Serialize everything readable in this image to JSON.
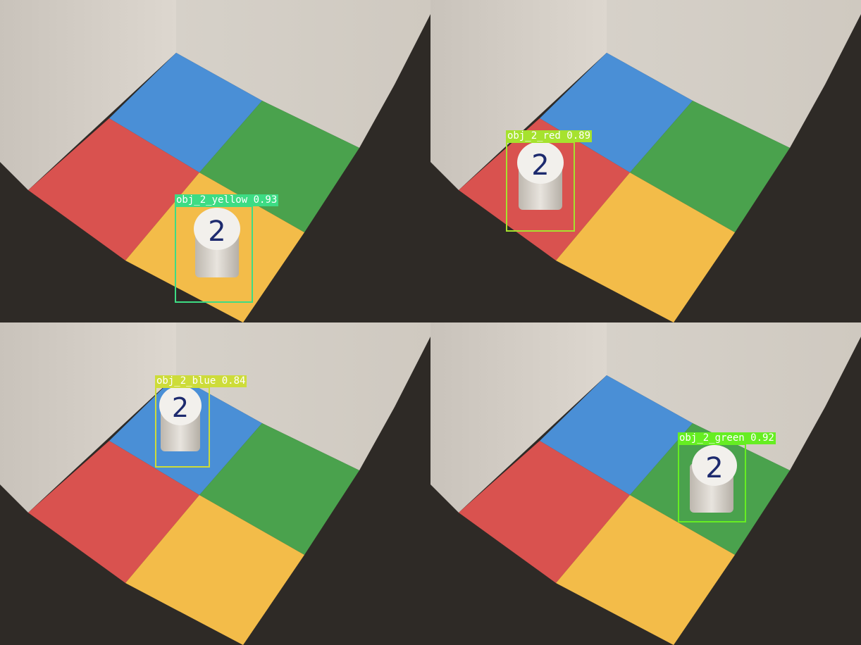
{
  "panels": [
    {
      "id": "top-left",
      "detection": {
        "label": "obj_2_yellow",
        "score": "0.93",
        "text": "obj_2_yellow 0.93",
        "color": "#3ddc84"
      },
      "object": {
        "digit": "2",
        "location": "yellow"
      }
    },
    {
      "id": "top-right",
      "detection": {
        "label": "obj_2_red",
        "score": "0.89",
        "text": "obj_2_red 0.89",
        "color": "#a6e22e"
      },
      "object": {
        "digit": "2",
        "location": "red"
      }
    },
    {
      "id": "bottom-left",
      "detection": {
        "label": "obj_2_blue",
        "score": "0.84",
        "text": "obj_2_blue 0.84",
        "color": "#cddc39"
      },
      "object": {
        "digit": "2",
        "location": "blue"
      }
    },
    {
      "id": "bottom-right",
      "detection": {
        "label": "obj_2_green",
        "score": "0.92",
        "text": "obj_2_green 0.92",
        "color": "#66ee22"
      },
      "object": {
        "digit": "2",
        "location": "green"
      }
    }
  ],
  "colors": {
    "red": "#d9524f",
    "blue": "#4a8fd6",
    "green": "#4aa24d",
    "yellow": "#f3bc49",
    "wall": "#d8d2ca",
    "floor": "#2e2a26"
  }
}
